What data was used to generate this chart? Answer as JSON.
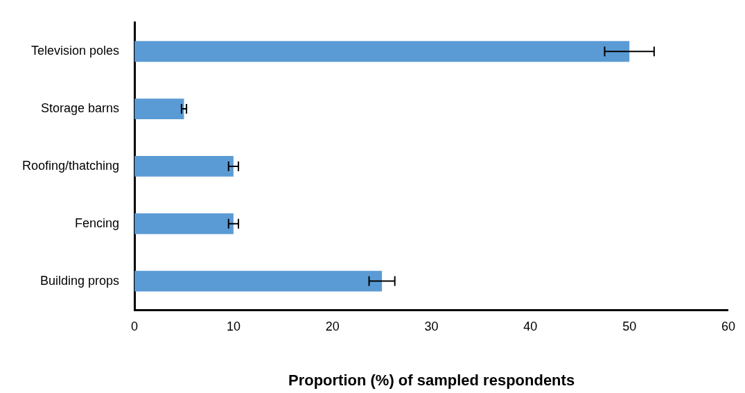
{
  "chart_data": {
    "type": "bar",
    "orientation": "horizontal",
    "xlabel": "Proportion (%) of sampled respondents",
    "categories": [
      "Television poles",
      "Storage barns",
      "Roofing/thatching",
      "Fencing",
      "Building props"
    ],
    "values": [
      50,
      5,
      10,
      10,
      25
    ],
    "errors": [
      2.5,
      0.25,
      0.5,
      0.5,
      1.3
    ],
    "color": "#5b9bd5",
    "xlim": [
      0,
      60
    ],
    "xticks": [
      0,
      10,
      20,
      30,
      40,
      50,
      60
    ],
    "grid": false,
    "legend": false
  }
}
